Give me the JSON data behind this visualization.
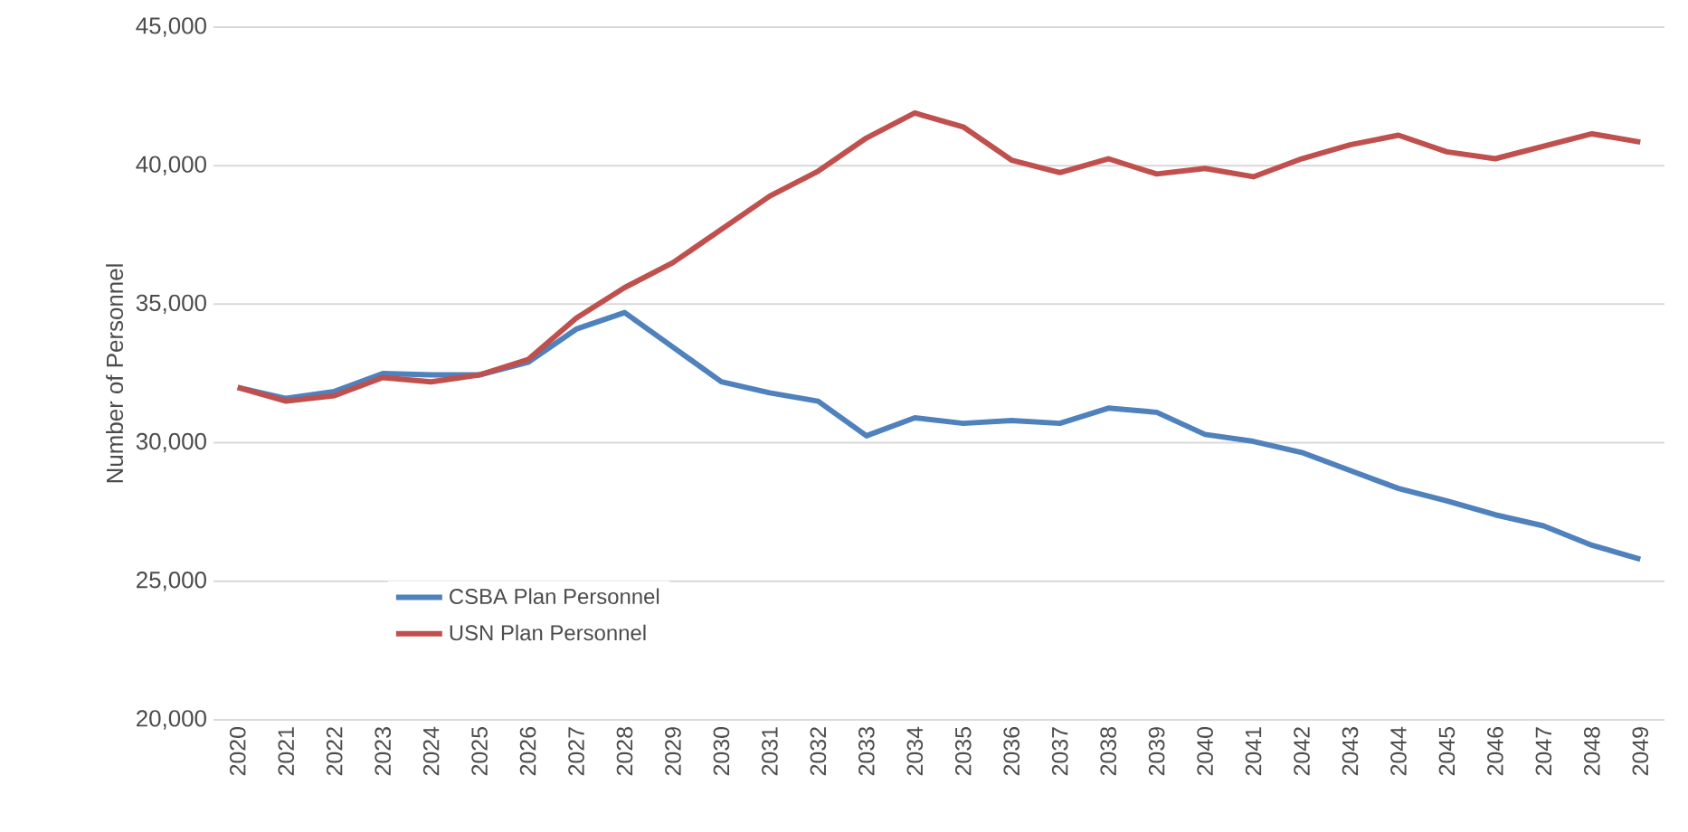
{
  "chart_data": {
    "type": "line",
    "ylabel": "Number of Personnel",
    "categories": [
      "2020",
      "2021",
      "2022",
      "2023",
      "2024",
      "2025",
      "2026",
      "2027",
      "2028",
      "2029",
      "2030",
      "2031",
      "2032",
      "2033",
      "2034",
      "2035",
      "2036",
      "2037",
      "2038",
      "2039",
      "2040",
      "2041",
      "2042",
      "2043",
      "2044",
      "2045",
      "2046",
      "2047",
      "2048",
      "2049"
    ],
    "series": [
      {
        "name": "CSBA Plan Personnel",
        "color": "#4f81bd",
        "values": [
          32000,
          31600,
          31850,
          32500,
          32450,
          32450,
          32900,
          34100,
          34700,
          33450,
          32200,
          31800,
          31500,
          30250,
          30900,
          30700,
          30800,
          30700,
          31250,
          31100,
          30300,
          30050,
          29650,
          29000,
          28350,
          27900,
          27400,
          27000,
          26300,
          25800
        ]
      },
      {
        "name": "USN Plan Personnel",
        "color": "#c0504d",
        "values": [
          32000,
          31500,
          31700,
          32350,
          32200,
          32450,
          33000,
          34500,
          35600,
          36500,
          37700,
          38900,
          39800,
          41000,
          41900,
          41400,
          40200,
          39750,
          40250,
          39700,
          39900,
          39600,
          40250,
          40750,
          41100,
          40500,
          40250,
          40700,
          41150,
          40850
        ]
      }
    ],
    "ylim": [
      20000,
      45000
    ],
    "yticks": [
      {
        "value": 20000,
        "label": "20,000"
      },
      {
        "value": 25000,
        "label": "25,000"
      },
      {
        "value": 30000,
        "label": "30,000"
      },
      {
        "value": 35000,
        "label": "35,000"
      },
      {
        "value": 40000,
        "label": "40,000"
      },
      {
        "value": 45000,
        "label": "45,000"
      }
    ],
    "grid": "y",
    "legend": "bottom left",
    "marker": "none",
    "line_style": "solid"
  }
}
